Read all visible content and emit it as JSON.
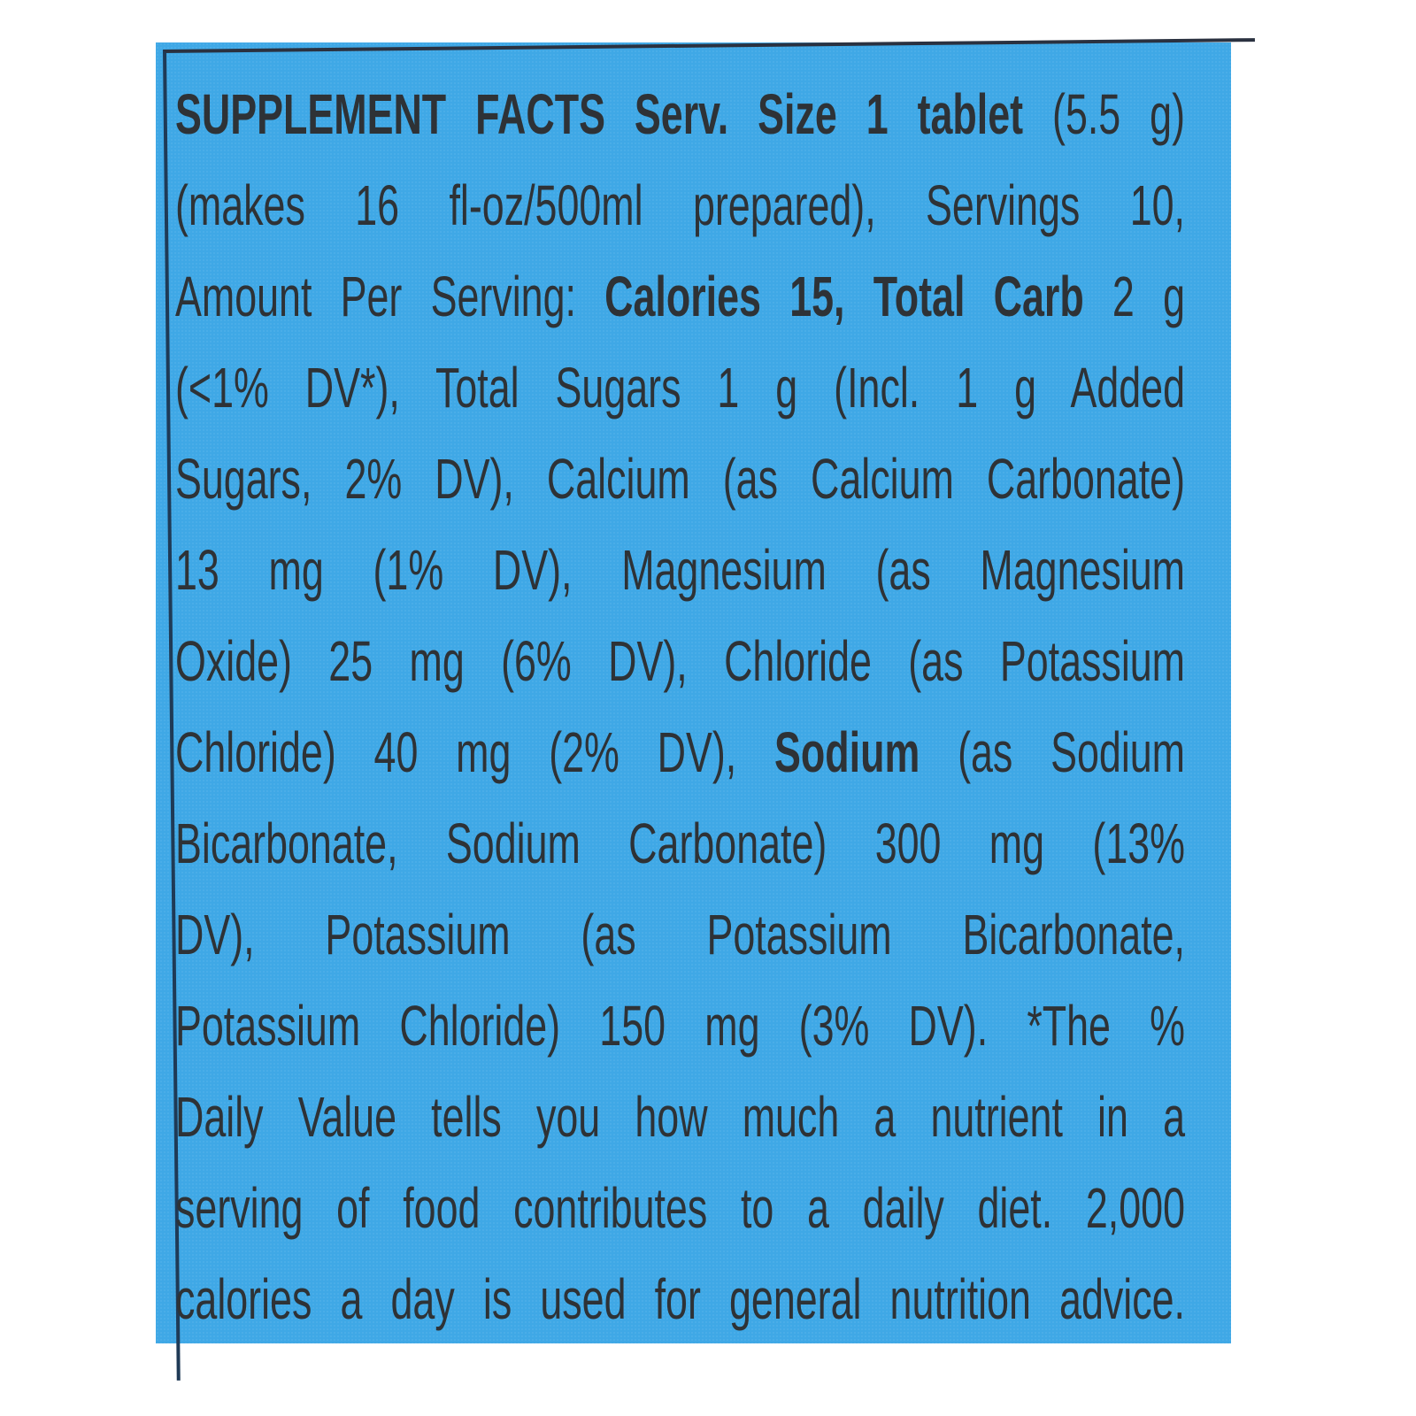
{
  "panel_color": "#3fa8e6",
  "text_color": "#2e3236",
  "lines": [
    [
      {
        "t": "SUPPLEMENT FACTS Serv. Size 1 tablet ",
        "b": true
      },
      {
        "t": "(5.5 g)",
        "b": false
      }
    ],
    [
      {
        "t": "(makes 16 fl-oz/500ml prepared), Servings 10,",
        "b": false
      }
    ],
    [
      {
        "t": "Amount Per Serving: ",
        "b": false
      },
      {
        "t": "Calories 15, Total Carb ",
        "b": true
      },
      {
        "t": "2 g",
        "b": false
      }
    ],
    [
      {
        "t": "(<1% DV*), Total Sugars 1 g (Incl. 1 g Added",
        "b": false
      }
    ],
    [
      {
        "t": "Sugars, 2% DV), Calcium (as Calcium Carbonate)",
        "b": false
      }
    ],
    [
      {
        "t": "13 mg (1% DV), Magnesium (as Magnesium",
        "b": false
      }
    ],
    [
      {
        "t": "Oxide) 25 mg (6% DV), Chloride (as Potassium",
        "b": false
      }
    ],
    [
      {
        "t": "Chloride) 40 mg (2% DV), ",
        "b": false
      },
      {
        "t": "Sodium ",
        "b": true
      },
      {
        "t": "(as Sodium",
        "b": false
      }
    ],
    [
      {
        "t": "Bicarbonate, Sodium Carbonate) 300 mg (13%",
        "b": false
      }
    ],
    [
      {
        "t": "DV), Potassium (as Potassium Bicarbonate,",
        "b": false
      }
    ],
    [
      {
        "t": "Potassium Chloride) 150 mg (3% DV). *The %",
        "b": false
      }
    ],
    [
      {
        "t": "Daily Value tells you how much a nutrient in a",
        "b": false
      }
    ],
    [
      {
        "t": "serving of food contributes to a daily diet. 2,000",
        "b": false
      }
    ],
    [
      {
        "t": "calories a day is used for general nutrition advice.",
        "b": false
      }
    ]
  ]
}
